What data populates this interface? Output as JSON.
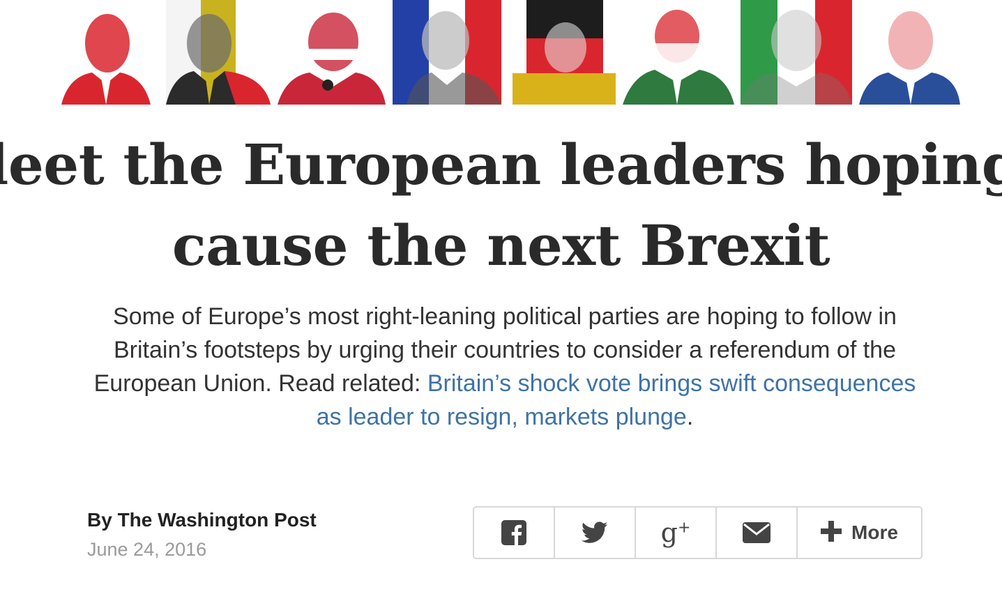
{
  "portraits": [
    {
      "name": "portrait-1",
      "colors": [
        "#d9262e",
        "#ffffff"
      ]
    },
    {
      "name": "portrait-2",
      "colors": [
        "#2b2b2b",
        "#c9b21f",
        "#d9262e"
      ]
    },
    {
      "name": "portrait-3",
      "colors": [
        "#c9263a",
        "#ffffff"
      ]
    },
    {
      "name": "portrait-4",
      "colors": [
        "#2340a6",
        "#ffffff",
        "#d9262e"
      ]
    },
    {
      "name": "portrait-5",
      "colors": [
        "#1d1d1d",
        "#d9262e",
        "#d9b21a"
      ]
    },
    {
      "name": "portrait-6",
      "colors": [
        "#d9262e",
        "#ffffff",
        "#2f7a3e"
      ]
    },
    {
      "name": "portrait-7",
      "colors": [
        "#2f9a48",
        "#ffffff",
        "#d9262e"
      ]
    },
    {
      "name": "portrait-8",
      "colors": [
        "#d9262e",
        "#ffffff",
        "#2a4f9a"
      ]
    }
  ],
  "headline": {
    "line1": "leet the European leaders hoping",
    "line2": "cause the next Brexit"
  },
  "dek": {
    "text": "Some of Europe’s most right-leaning political parties are hoping to follow in Britain’s footsteps by urging their countries to consider a referendum of the European Union. Read related: ",
    "link_text": "Britain’s shock vote brings swift consequences as leader to resign, markets plunge",
    "trailing": "."
  },
  "byline": {
    "author": "By The Washington Post",
    "date": "June 24, 2016"
  },
  "share": {
    "icons": [
      "facebook-icon",
      "twitter-icon",
      "google-plus-icon",
      "email-icon",
      "plus-icon"
    ],
    "gplus_glyph": "g",
    "gplus_sup": "+",
    "more_label": "More"
  },
  "colors": {
    "headline": "#2a2a2a",
    "link": "#3e73a7",
    "date": "#9a9a9a",
    "icon": "#444444",
    "border": "#d8d8d8"
  }
}
